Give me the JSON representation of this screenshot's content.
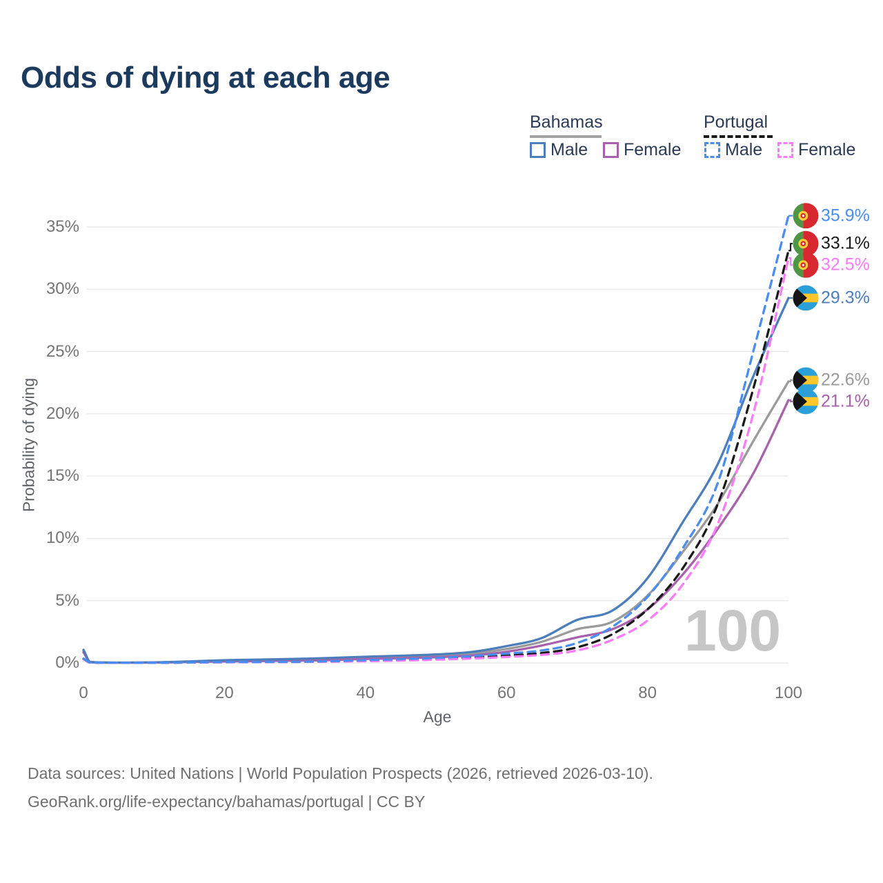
{
  "title": "Odds of dying at each age",
  "colors": {
    "title": "#1c3a5e",
    "bahamas_male": "#4d7ebc",
    "bahamas_female": "#a861ab",
    "bahamas_total": "#9a9a9a",
    "portugal_male": "#4a8df0",
    "portugal_female": "#fb7bf8",
    "portugal_total": "#1a1a1a",
    "gridline": "#e8e8e8",
    "watermark": "#c6c6c6"
  },
  "legend": {
    "groups": [
      {
        "country": "Bahamas",
        "line_style": "solid",
        "items": [
          {
            "label": "Male",
            "color": "#4d7ebc"
          },
          {
            "label": "Female",
            "color": "#a861ab"
          }
        ]
      },
      {
        "country": "Portugal",
        "line_style": "dashed",
        "items": [
          {
            "label": "Male",
            "color": "#4a8df0"
          },
          {
            "label": "Female",
            "color": "#fb7bf8"
          }
        ]
      }
    ]
  },
  "chart_data": {
    "type": "line",
    "title": "Odds of dying at each age",
    "xlabel": "Age",
    "ylabel": "Probability of dying",
    "xlim": [
      0,
      100
    ],
    "ylim": [
      0,
      36.5
    ],
    "grid": "horizontal-only",
    "watermark": "100",
    "x_axis": {
      "title": "Age",
      "ticks": [
        {
          "value": 0,
          "label": "0"
        },
        {
          "value": 20,
          "label": "20"
        },
        {
          "value": 40,
          "label": "40"
        },
        {
          "value": 60,
          "label": "60"
        },
        {
          "value": 80,
          "label": "80"
        },
        {
          "value": 100,
          "label": "100"
        }
      ]
    },
    "y_axis": {
      "title": "Probability of dying",
      "ticks": [
        {
          "value": 0,
          "label": "0%"
        },
        {
          "value": 5,
          "label": "5%"
        },
        {
          "value": 10,
          "label": "10%"
        },
        {
          "value": 15,
          "label": "15%"
        },
        {
          "value": 20,
          "label": "20%"
        },
        {
          "value": 25,
          "label": "25%"
        },
        {
          "value": 30,
          "label": "30%"
        },
        {
          "value": 35,
          "label": "35%"
        }
      ]
    },
    "ages": [
      0,
      1,
      5,
      10,
      15,
      20,
      25,
      30,
      35,
      40,
      45,
      50,
      55,
      60,
      65,
      70,
      75,
      80,
      85,
      90,
      95,
      100
    ],
    "series": [
      {
        "name": "Bahamas Male",
        "country": "Bahamas",
        "sex": "male",
        "color": "#4d7ebc",
        "line_style": "solid",
        "flag": "bahamas",
        "end_label": "29.3%",
        "end_value": 29.3,
        "values": [
          1.05,
          0.07,
          0.03,
          0.05,
          0.12,
          0.22,
          0.27,
          0.32,
          0.4,
          0.5,
          0.58,
          0.68,
          0.88,
          1.35,
          2.0,
          3.45,
          4.2,
          6.8,
          11.3,
          16.0,
          23.0,
          29.3
        ]
      },
      {
        "name": "Bahamas Female",
        "country": "Bahamas",
        "sex": "female",
        "color": "#a861ab",
        "line_style": "solid",
        "flag": "bahamas",
        "end_label": "21.1%",
        "end_value": 21.1,
        "values": [
          0.85,
          0.05,
          0.02,
          0.03,
          0.08,
          0.12,
          0.15,
          0.18,
          0.23,
          0.32,
          0.38,
          0.46,
          0.6,
          0.9,
          1.4,
          2.05,
          2.7,
          4.3,
          7.1,
          10.8,
          15.2,
          21.1
        ]
      },
      {
        "name": "Bahamas Total",
        "country": "Bahamas",
        "sex": "total",
        "color": "#9a9a9a",
        "line_style": "solid",
        "flag": "bahamas",
        "end_label": "22.6%",
        "end_value": 22.6,
        "values": [
          0.95,
          0.06,
          0.025,
          0.04,
          0.1,
          0.17,
          0.21,
          0.25,
          0.31,
          0.41,
          0.48,
          0.57,
          0.74,
          1.12,
          1.7,
          2.7,
          3.3,
          5.4,
          8.9,
          12.8,
          17.8,
          22.6
        ]
      },
      {
        "name": "Portugal Male",
        "country": "Portugal",
        "sex": "male",
        "color": "#4a8df0",
        "line_style": "dashed",
        "flag": "portugal",
        "end_label": "35.9%",
        "end_value": 35.9,
        "values": [
          0.35,
          0.03,
          0.01,
          0.01,
          0.04,
          0.07,
          0.08,
          0.09,
          0.14,
          0.22,
          0.3,
          0.4,
          0.55,
          0.75,
          1.0,
          1.6,
          2.9,
          5.3,
          9.2,
          14.5,
          25.0,
          35.9
        ]
      },
      {
        "name": "Portugal Female",
        "country": "Portugal",
        "sex": "female",
        "color": "#fb7bf8",
        "line_style": "dashed",
        "flag": "portugal",
        "end_label": "32.5%",
        "end_value": 32.5,
        "values": [
          0.3,
          0.02,
          0.01,
          0.01,
          0.03,
          0.05,
          0.06,
          0.08,
          0.1,
          0.14,
          0.19,
          0.26,
          0.35,
          0.48,
          0.65,
          1.0,
          1.85,
          3.4,
          6.3,
          11.2,
          20.0,
          32.5
        ]
      },
      {
        "name": "Portugal Total",
        "country": "Portugal",
        "sex": "total",
        "color": "#1a1a1a",
        "line_style": "dashed",
        "flag": "portugal",
        "end_label": "33.1%",
        "end_value": 33.1,
        "values": [
          0.32,
          0.025,
          0.01,
          0.01,
          0.035,
          0.06,
          0.07,
          0.085,
          0.12,
          0.18,
          0.24,
          0.32,
          0.44,
          0.6,
          0.8,
          1.25,
          2.3,
          4.3,
          7.6,
          12.8,
          22.0,
          33.1
        ]
      }
    ]
  },
  "footer": {
    "line1": "Data sources: United Nations | World Population Prospects (2026, retrieved 2026-03-10).",
    "line2": "GeoRank.org/life-expectancy/bahamas/portugal | CC BY"
  }
}
